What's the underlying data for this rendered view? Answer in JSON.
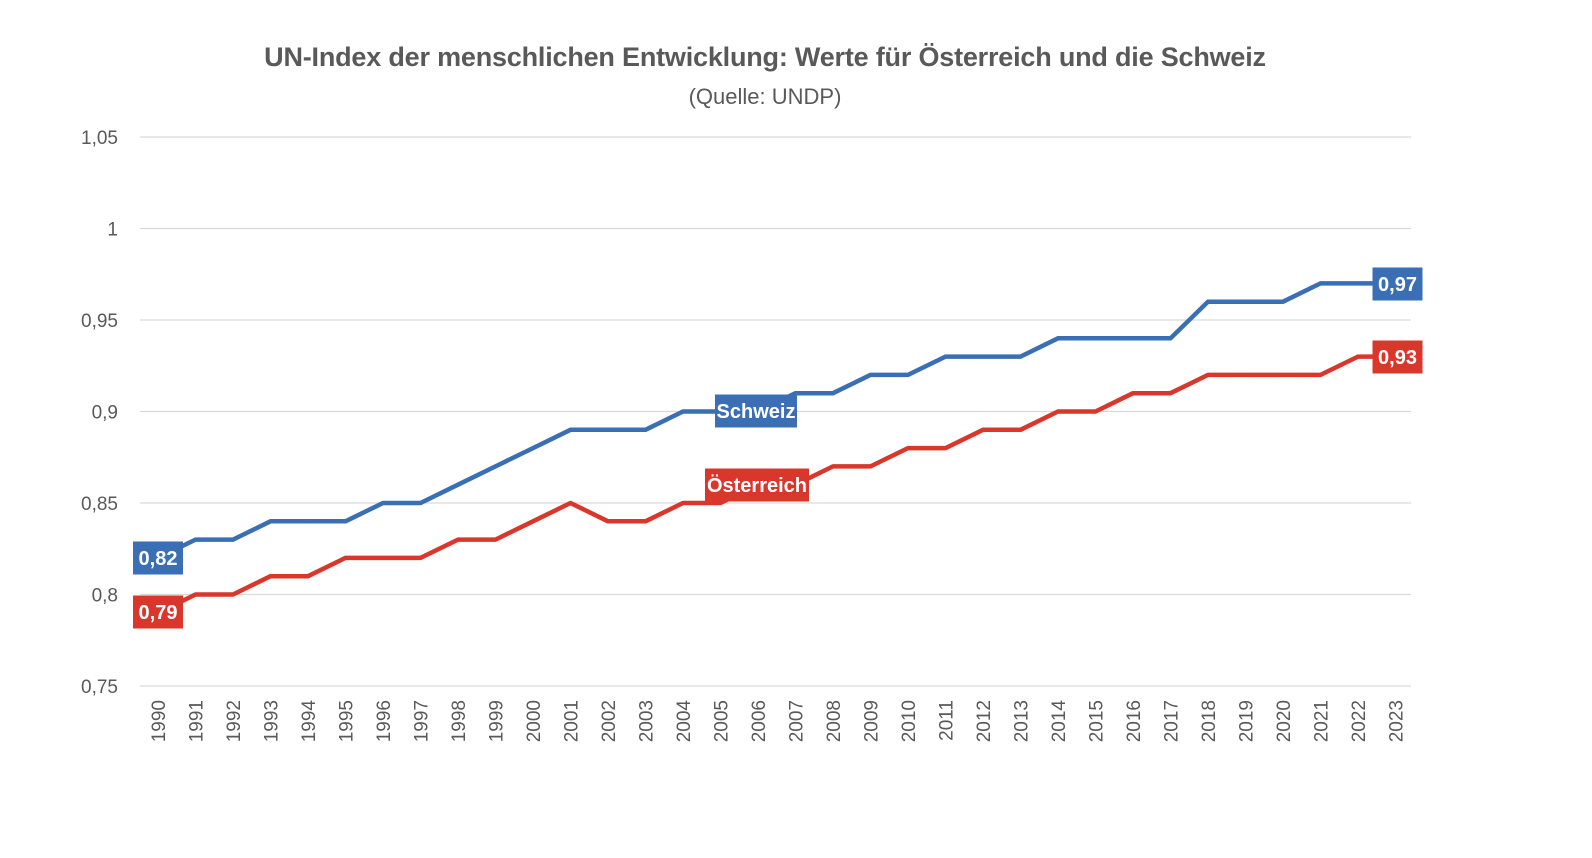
{
  "chart_data": {
    "type": "line",
    "title": "UN-Index der menschlichen Entwicklung: Werte für Österreich und die Schweiz",
    "subtitle": "(Quelle: UNDP)",
    "xlabel": "",
    "ylabel": "",
    "ylim": [
      0.75,
      1.05
    ],
    "yticks": [
      "1,05",
      "1",
      "0,95",
      "0,9",
      "0,85",
      "0,8",
      "0,75"
    ],
    "ytick_values": [
      1.05,
      1.0,
      0.95,
      0.9,
      0.85,
      0.8,
      0.75
    ],
    "grid": true,
    "categories": [
      "1990",
      "1991",
      "1992",
      "1993",
      "1994",
      "1995",
      "1996",
      "1997",
      "1998",
      "1999",
      "2000",
      "2001",
      "2002",
      "2003",
      "2004",
      "2005",
      "2006",
      "2007",
      "2008",
      "2009",
      "2010",
      "2011",
      "2012",
      "2013",
      "2014",
      "2015",
      "2016",
      "2017",
      "2018",
      "2019",
      "2020",
      "2021",
      "2022",
      "2023"
    ],
    "series": [
      {
        "name": "Schweiz",
        "color": "#3a6fb5",
        "values": [
          0.82,
          0.83,
          0.83,
          0.84,
          0.84,
          0.84,
          0.85,
          0.85,
          0.86,
          0.87,
          0.88,
          0.89,
          0.89,
          0.89,
          0.9,
          0.9,
          0.9,
          0.91,
          0.91,
          0.92,
          0.92,
          0.93,
          0.93,
          0.93,
          0.94,
          0.94,
          0.94,
          0.94,
          0.96,
          0.96,
          0.96,
          0.97,
          0.97,
          0.97
        ],
        "start_label": "0,82",
        "end_label": "0,97"
      },
      {
        "name": "Österreich",
        "color": "#d9372b",
        "values": [
          0.79,
          0.8,
          0.8,
          0.81,
          0.81,
          0.82,
          0.82,
          0.82,
          0.83,
          0.83,
          0.84,
          0.85,
          0.84,
          0.84,
          0.85,
          0.85,
          0.86,
          0.86,
          0.87,
          0.87,
          0.88,
          0.88,
          0.89,
          0.89,
          0.9,
          0.9,
          0.91,
          0.91,
          0.92,
          0.92,
          0.92,
          0.92,
          0.93,
          0.93
        ],
        "start_label": "0,79",
        "end_label": "0,93"
      }
    ]
  }
}
